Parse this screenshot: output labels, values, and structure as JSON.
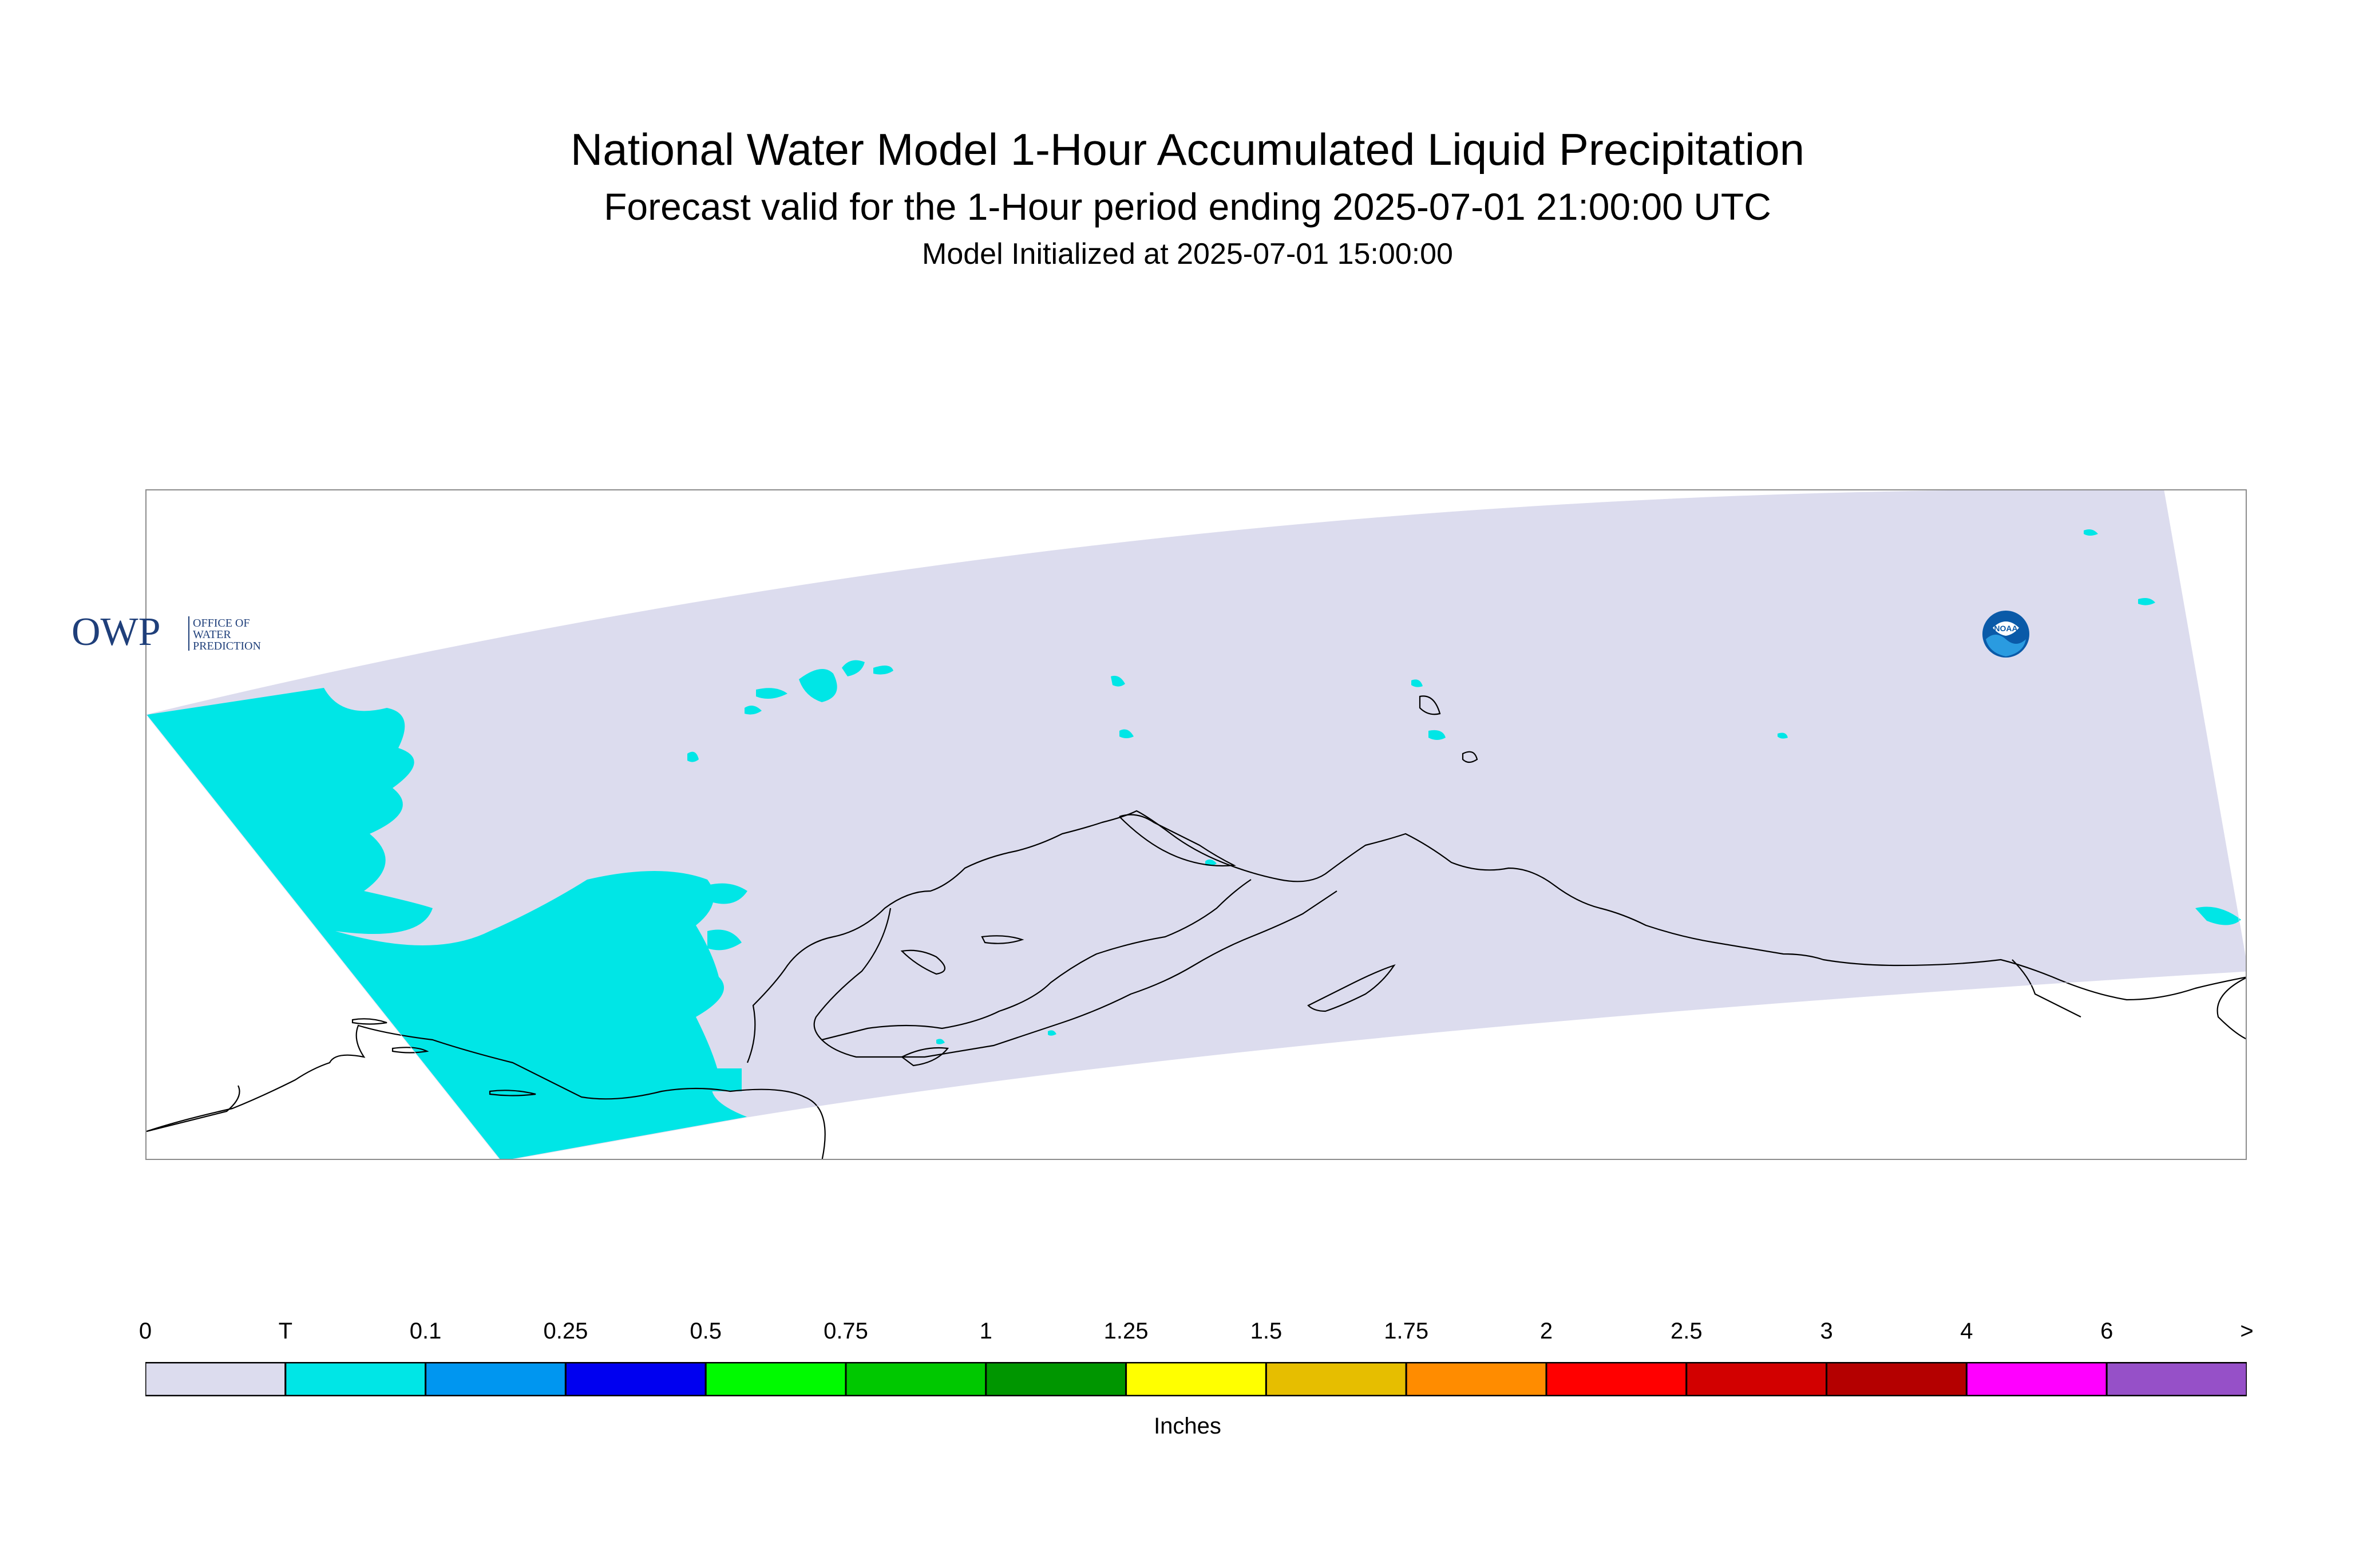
{
  "title": {
    "main": "National Water Model 1-Hour Accumulated Liquid Precipitation",
    "subtitle": "Forecast valid for the 1-Hour period ending 2025-07-01 21:00:00 UTC",
    "init": "Model Initialized at 2025-07-01 15:00:00"
  },
  "map": {
    "region": "Alaska domain",
    "background_color": "#dcdcee",
    "precip_trace_color": "#00e6e6",
    "coastline_color": "#000000",
    "logos": {
      "owp": {
        "text": "OWP",
        "small_text": [
          "OFFICE OF",
          "WATER",
          "PREDICTION"
        ]
      },
      "noaa": {
        "text": "NOAA"
      }
    }
  },
  "legend": {
    "units": "Inches",
    "labels": [
      "0",
      "T",
      "0.1",
      "0.25",
      "0.5",
      "0.75",
      "1",
      "1.25",
      "1.5",
      "1.75",
      "2",
      "2.5",
      "3",
      "4",
      "6",
      ">"
    ],
    "colors": [
      "#dcdcee",
      "#00e6e6",
      "#0096f0",
      "#0000f0",
      "#00fa00",
      "#00c800",
      "#009600",
      "#ffff00",
      "#e6be00",
      "#ff8c00",
      "#ff0000",
      "#d20000",
      "#b40000",
      "#ff00ff",
      "#9650c8"
    ]
  }
}
